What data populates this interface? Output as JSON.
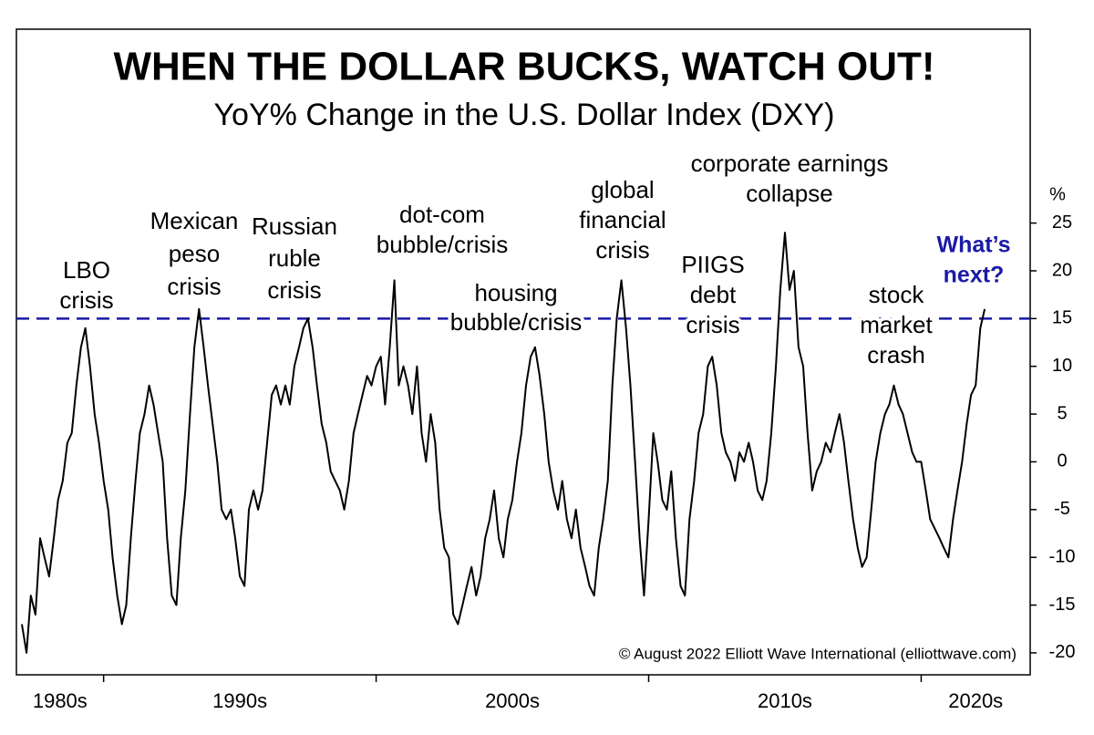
{
  "chart_data": {
    "type": "line",
    "title": "WHEN THE DOLLAR BUCKS, WATCH OUT!",
    "subtitle": "YoY% Change in the U.S. Dollar Index (DXY)",
    "y_unit_label": "%",
    "source": "© August 2022 Elliott Wave International (elliottwave.com)",
    "x_period_labels": [
      "1980s",
      "1990s",
      "2000s",
      "2010s",
      "2020s"
    ],
    "xlim": [
      1986.8,
      2024.0
    ],
    "xticks": [
      1990,
      2000,
      2010,
      2020
    ],
    "ylim": [
      -22.3,
      45.3
    ],
    "yticks": [
      -20,
      -15,
      -10,
      -5,
      0,
      5,
      10,
      15,
      20,
      25
    ],
    "reference_line": {
      "value": 15,
      "color": "#1a1aa6",
      "style": "dashed"
    },
    "x": [
      1987,
      1987.17,
      1987.33,
      1987.5,
      1987.67,
      1987.83,
      1988,
      1988.17,
      1988.33,
      1988.5,
      1988.67,
      1988.83,
      1989,
      1989.17,
      1989.33,
      1989.5,
      1989.67,
      1989.83,
      1990,
      1990.17,
      1990.33,
      1990.5,
      1990.67,
      1990.83,
      1991,
      1991.17,
      1991.33,
      1991.5,
      1991.67,
      1991.83,
      1992,
      1992.17,
      1992.33,
      1992.5,
      1992.67,
      1992.83,
      1993,
      1993.17,
      1993.33,
      1993.5,
      1993.67,
      1993.83,
      1994,
      1994.17,
      1994.33,
      1994.5,
      1994.67,
      1994.83,
      1995,
      1995.17,
      1995.33,
      1995.5,
      1995.67,
      1995.83,
      1996,
      1996.17,
      1996.33,
      1996.5,
      1996.67,
      1996.83,
      1997,
      1997.17,
      1997.33,
      1997.5,
      1997.67,
      1997.83,
      1998,
      1998.17,
      1998.33,
      1998.5,
      1998.67,
      1998.83,
      1999,
      1999.17,
      1999.33,
      1999.5,
      1999.67,
      1999.83,
      2000,
      2000.17,
      2000.33,
      2000.5,
      2000.67,
      2000.83,
      2001,
      2001.17,
      2001.33,
      2001.5,
      2001.67,
      2001.83,
      2002,
      2002.17,
      2002.33,
      2002.5,
      2002.67,
      2002.83,
      2003,
      2003.17,
      2003.33,
      2003.5,
      2003.67,
      2003.83,
      2004,
      2004.17,
      2004.33,
      2004.5,
      2004.67,
      2004.83,
      2005,
      2005.17,
      2005.33,
      2005.5,
      2005.67,
      2005.83,
      2006,
      2006.17,
      2006.33,
      2006.5,
      2006.67,
      2006.83,
      2007,
      2007.17,
      2007.33,
      2007.5,
      2007.67,
      2007.83,
      2008,
      2008.17,
      2008.33,
      2008.5,
      2008.67,
      2008.83,
      2009,
      2009.17,
      2009.33,
      2009.5,
      2009.67,
      2009.83,
      2010,
      2010.17,
      2010.33,
      2010.5,
      2010.67,
      2010.83,
      2011,
      2011.17,
      2011.33,
      2011.5,
      2011.67,
      2011.83,
      2012,
      2012.17,
      2012.33,
      2012.5,
      2012.67,
      2012.83,
      2013,
      2013.17,
      2013.33,
      2013.5,
      2013.67,
      2013.83,
      2014,
      2014.17,
      2014.33,
      2014.5,
      2014.67,
      2014.83,
      2015,
      2015.17,
      2015.33,
      2015.5,
      2015.67,
      2015.83,
      2016,
      2016.17,
      2016.33,
      2016.5,
      2016.67,
      2016.83,
      2017,
      2017.17,
      2017.33,
      2017.5,
      2017.67,
      2017.83,
      2018,
      2018.17,
      2018.33,
      2018.5,
      2018.67,
      2018.83,
      2019,
      2019.17,
      2019.33,
      2019.5,
      2019.67,
      2019.83,
      2020,
      2020.17,
      2020.33,
      2020.5,
      2020.67,
      2020.83,
      2021,
      2021.17,
      2021.33,
      2021.5,
      2021.67,
      2021.83,
      2022,
      2022.17,
      2022.33
    ],
    "series": [
      {
        "color": "#000000",
        "values": [
          -17,
          -20,
          -14,
          -16,
          -8,
          -10,
          -12,
          -8,
          -4,
          -2,
          2,
          3,
          8,
          12,
          14,
          10,
          5,
          2,
          -2,
          -5,
          -10,
          -14,
          -17,
          -15,
          -8,
          -2,
          3,
          5,
          8,
          6,
          3,
          0,
          -8,
          -14,
          -15,
          -8,
          -3,
          5,
          12,
          16,
          12,
          8,
          4,
          0,
          -5,
          -6,
          -5,
          -8,
          -12,
          -13,
          -5,
          -3,
          -5,
          -3,
          2,
          7,
          8,
          6,
          8,
          6,
          10,
          12,
          14,
          15,
          12,
          8,
          4,
          2,
          -1,
          -2,
          -3,
          -5,
          -2,
          3,
          5,
          7,
          9,
          8,
          10,
          11,
          6,
          12,
          19,
          8,
          10,
          8,
          5,
          10,
          3,
          0,
          5,
          2,
          -5,
          -9,
          -10,
          -16,
          -17,
          -15,
          -13,
          -11,
          -14,
          -12,
          -8,
          -6,
          -3,
          -8,
          -10,
          -6,
          -4,
          0,
          3,
          8,
          11,
          12,
          9,
          5,
          0,
          -3,
          -5,
          -2,
          -6,
          -8,
          -5,
          -9,
          -11,
          -13,
          -14,
          -9,
          -6,
          -2,
          8,
          15,
          19,
          14,
          8,
          0,
          -8,
          -14,
          -6,
          3,
          0,
          -4,
          -5,
          -1,
          -8,
          -13,
          -14,
          -6,
          -2,
          3,
          5,
          10,
          11,
          8,
          3,
          1,
          0,
          -2,
          1,
          0,
          2,
          0,
          -3,
          -4,
          -2,
          3,
          10,
          18,
          24,
          18,
          20,
          12,
          10,
          3,
          -3,
          -1,
          0,
          2,
          1,
          3,
          5,
          2,
          -2,
          -6,
          -9,
          -11,
          -10,
          -5,
          0,
          3,
          5,
          6,
          8,
          6,
          5,
          3,
          1,
          0,
          0,
          -3,
          -6,
          -7,
          -8,
          -9,
          -10,
          -6,
          -3,
          0,
          4,
          7,
          8,
          14,
          16
        ]
      }
    ],
    "annotations": [
      {
        "lines": [
          "LBO",
          "crisis"
        ]
      },
      {
        "lines": [
          "Mexican",
          "peso",
          "crisis"
        ]
      },
      {
        "lines": [
          "Russian",
          "ruble",
          "crisis"
        ]
      },
      {
        "lines": [
          "dot-com",
          "bubble/crisis"
        ]
      },
      {
        "lines": [
          "housing",
          "bubble/crisis"
        ]
      },
      {
        "lines": [
          "global",
          "financial",
          "crisis"
        ]
      },
      {
        "lines": [
          "PIIGS",
          "debt",
          "crisis"
        ]
      },
      {
        "lines": [
          "corporate earnings",
          "collapse"
        ]
      },
      {
        "lines": [
          "stock",
          "market",
          "crash"
        ]
      },
      {
        "lines": [
          "What’s",
          "next?"
        ],
        "color": "#1a1aa6"
      }
    ]
  }
}
